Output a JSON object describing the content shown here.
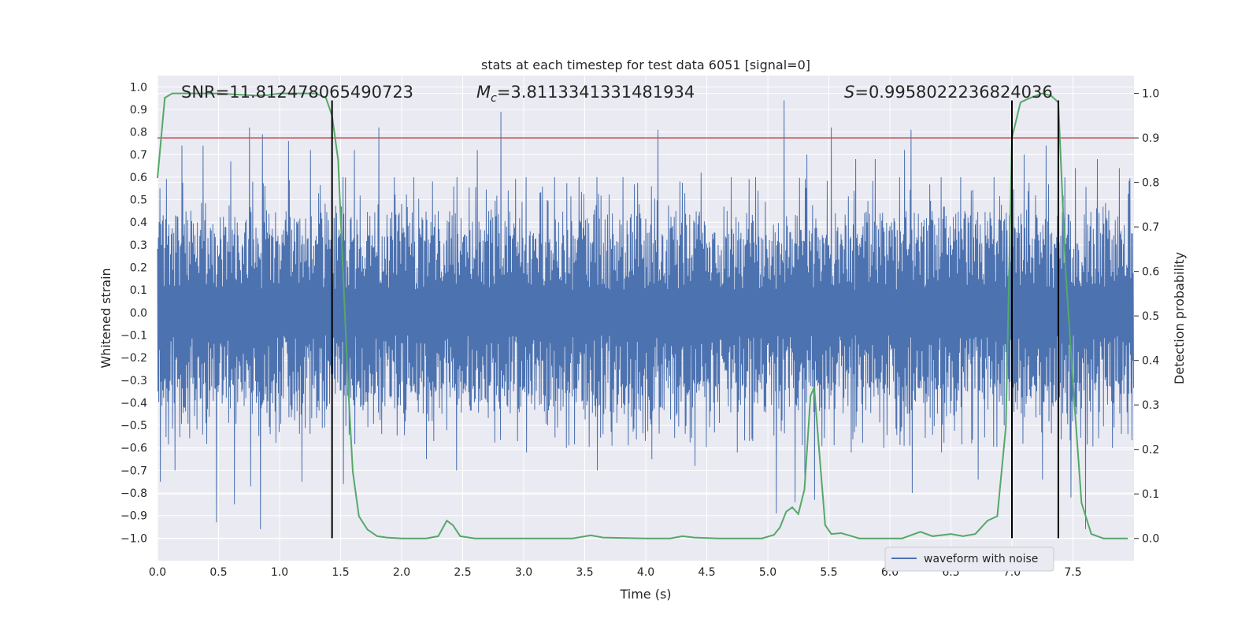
{
  "chart_data": {
    "type": "line",
    "title": "stats at each timestep for test data 6051 [signal=0]",
    "xlabel": "Time (s)",
    "ylabel": "Whitened strain",
    "y2label": "Detection probability",
    "xlim": [
      0.0,
      8.0
    ],
    "ylim": [
      -1.1,
      1.05
    ],
    "y2lim": [
      -0.05,
      1.04
    ],
    "xticks": [
      "0.0",
      "0.5",
      "1.0",
      "1.5",
      "2.0",
      "2.5",
      "3.0",
      "3.5",
      "4.0",
      "4.5",
      "5.0",
      "5.5",
      "6.0",
      "6.5",
      "7.0",
      "7.5"
    ],
    "yticks": [
      "1.0",
      "0.9",
      "0.8",
      "0.7",
      "0.6",
      "0.5",
      "0.4",
      "0.3",
      "0.2",
      "0.1",
      "0.0",
      "-0.1",
      "-0.2",
      "-0.3",
      "-0.4",
      "-0.5",
      "-0.6",
      "-0.7",
      "-0.8",
      "-0.9",
      "-1.0"
    ],
    "y2ticks": [
      "1.0",
      "0.9",
      "0.8",
      "0.7",
      "0.6",
      "0.5",
      "0.4",
      "0.3",
      "0.2",
      "0.1",
      "0.0"
    ],
    "annotations": {
      "snr": "SNR=11.812478065490723",
      "mc_symbol": "M",
      "mc_sub": "c",
      "mc_value": "=3.8113341331481934",
      "s_symbol": "S",
      "s_value": "=0.9958022236824036"
    },
    "legend": [
      {
        "label": "waveform with noise",
        "color": "#4c72b0"
      }
    ],
    "legend_position": "lower-right",
    "threshold": {
      "value": 0.9,
      "color": "#c44e52",
      "axis": "y2"
    },
    "vlines": [
      1.43,
      7.0,
      7.38
    ],
    "vline_range": [
      -1.0,
      0.94
    ],
    "series": [
      {
        "name": "waveform with noise",
        "color": "#4c72b0",
        "axis": "y",
        "note": "dense noise trace, typical amplitude about ±0.35 with spikes",
        "duration": 8.0,
        "band": 0.35,
        "spikes_pos": [
          [
            0.02,
            0.55
          ],
          [
            0.2,
            0.74
          ],
          [
            0.37,
            0.74
          ],
          [
            0.6,
            0.67
          ],
          [
            0.75,
            0.82
          ],
          [
            0.86,
            0.79
          ],
          [
            1.07,
            0.76
          ],
          [
            1.25,
            0.72
          ],
          [
            1.52,
            0.6
          ],
          [
            1.61,
            0.72
          ],
          [
            1.81,
            0.82
          ],
          [
            2.1,
            0.6
          ],
          [
            2.45,
            0.6
          ],
          [
            2.62,
            0.72
          ],
          [
            2.81,
            0.89
          ],
          [
            3.02,
            0.6
          ],
          [
            3.25,
            0.6
          ],
          [
            3.45,
            0.6
          ],
          [
            3.6,
            0.6
          ],
          [
            3.81,
            0.6
          ],
          [
            4.1,
            0.81
          ],
          [
            4.28,
            0.58
          ],
          [
            4.45,
            0.62
          ],
          [
            4.7,
            0.6
          ],
          [
            4.9,
            0.6
          ],
          [
            5.13,
            0.94
          ],
          [
            5.32,
            0.7
          ],
          [
            5.52,
            0.82
          ],
          [
            5.72,
            0.68
          ],
          [
            5.88,
            0.68
          ],
          [
            6.12,
            0.72
          ],
          [
            6.17,
            0.81
          ],
          [
            6.42,
            0.6
          ],
          [
            6.58,
            0.6
          ],
          [
            6.85,
            0.6
          ],
          [
            7.1,
            0.7
          ],
          [
            7.28,
            0.74
          ],
          [
            7.52,
            0.64
          ],
          [
            7.7,
            0.68
          ],
          [
            7.88,
            0.64
          ]
        ],
        "spikes_neg": [
          [
            0.02,
            -0.75
          ],
          [
            0.14,
            -0.7
          ],
          [
            0.48,
            -0.93
          ],
          [
            0.63,
            -0.85
          ],
          [
            0.76,
            -0.77
          ],
          [
            0.84,
            -0.96
          ],
          [
            1.18,
            -0.75
          ],
          [
            1.52,
            -0.76
          ],
          [
            2.2,
            -0.65
          ],
          [
            2.45,
            -0.7
          ],
          [
            3.02,
            -0.62
          ],
          [
            3.35,
            -0.6
          ],
          [
            3.6,
            -0.7
          ],
          [
            4.05,
            -0.65
          ],
          [
            4.4,
            -0.68
          ],
          [
            4.75,
            -0.62
          ],
          [
            5.07,
            -0.89
          ],
          [
            5.22,
            -0.84
          ],
          [
            5.3,
            -0.75
          ],
          [
            5.38,
            -0.83
          ],
          [
            5.68,
            -0.62
          ],
          [
            5.95,
            -0.6
          ],
          [
            6.18,
            -0.8
          ],
          [
            6.42,
            -0.62
          ],
          [
            6.72,
            -0.74
          ],
          [
            7.25,
            -0.74
          ],
          [
            7.48,
            -0.82
          ],
          [
            7.6,
            -0.96
          ],
          [
            7.82,
            -0.6
          ]
        ]
      },
      {
        "name": "detection probability",
        "color": "#55a868",
        "axis": "y2",
        "x": [
          0.0,
          0.06,
          0.12,
          0.25,
          0.5,
          0.8,
          0.9,
          1.0,
          1.2,
          1.3,
          1.38,
          1.43,
          1.48,
          1.52,
          1.56,
          1.6,
          1.65,
          1.72,
          1.8,
          1.88,
          2.0,
          2.2,
          2.3,
          2.37,
          2.42,
          2.48,
          2.6,
          3.0,
          3.4,
          3.55,
          3.65,
          4.0,
          4.2,
          4.3,
          4.4,
          4.6,
          4.8,
          4.95,
          5.05,
          5.1,
          5.15,
          5.2,
          5.25,
          5.3,
          5.35,
          5.38,
          5.42,
          5.47,
          5.52,
          5.6,
          5.65,
          5.75,
          5.9,
          6.1,
          6.25,
          6.35,
          6.5,
          6.6,
          6.7,
          6.8,
          6.88,
          6.95,
          7.0,
          7.07,
          7.15,
          7.25,
          7.32,
          7.38,
          7.44,
          7.5,
          7.57,
          7.65,
          7.75,
          7.85,
          7.95
        ],
        "y": [
          0.81,
          0.99,
          1.0,
          1.0,
          1.0,
          0.995,
          0.996,
          1.0,
          1.0,
          1.0,
          0.99,
          0.95,
          0.85,
          0.6,
          0.35,
          0.15,
          0.05,
          0.02,
          0.005,
          0.002,
          0.0,
          0.0,
          0.005,
          0.04,
          0.03,
          0.005,
          0.0,
          0.0,
          0.0,
          0.007,
          0.002,
          0.0,
          0.0,
          0.005,
          0.002,
          0.0,
          0.0,
          0.0,
          0.008,
          0.025,
          0.06,
          0.07,
          0.055,
          0.11,
          0.32,
          0.34,
          0.2,
          0.03,
          0.01,
          0.012,
          0.008,
          0.0,
          0.0,
          0.0,
          0.015,
          0.005,
          0.01,
          0.005,
          0.01,
          0.04,
          0.05,
          0.25,
          0.9,
          0.98,
          0.99,
          1.0,
          0.995,
          0.98,
          0.6,
          0.35,
          0.08,
          0.01,
          0.0,
          0.0,
          0.0
        ]
      }
    ]
  }
}
